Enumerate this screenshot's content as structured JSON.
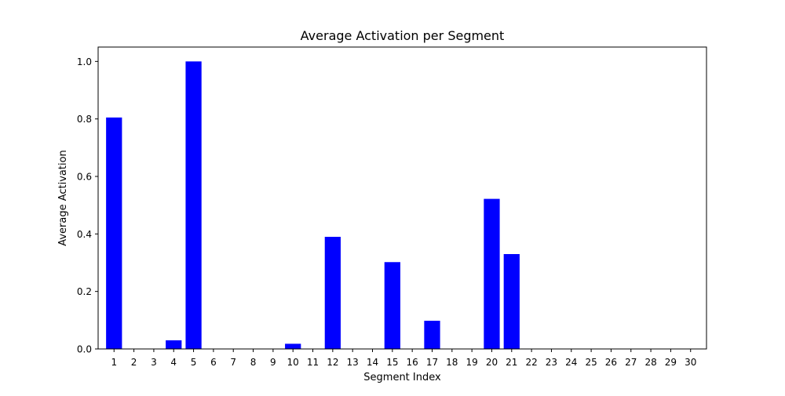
{
  "chart_data": {
    "type": "bar",
    "title": "Average Activation per Segment",
    "xlabel": "Segment Index",
    "ylabel": "Average Activation",
    "categories": [
      "1",
      "2",
      "3",
      "4",
      "5",
      "6",
      "7",
      "8",
      "9",
      "10",
      "11",
      "12",
      "13",
      "14",
      "15",
      "16",
      "17",
      "18",
      "19",
      "20",
      "21",
      "22",
      "23",
      "24",
      "25",
      "26",
      "27",
      "28",
      "29",
      "30"
    ],
    "values": [
      0.805,
      0,
      0,
      0.03,
      1.0,
      0,
      0,
      0,
      0,
      0.018,
      0,
      0.39,
      0,
      0,
      0.302,
      0,
      0.098,
      0,
      0,
      0.522,
      0.33,
      0,
      0,
      0,
      0,
      0,
      0,
      0,
      0,
      0
    ],
    "yticks": [
      "0.0",
      "0.2",
      "0.4",
      "0.6",
      "0.8",
      "1.0"
    ],
    "ytick_values": [
      0,
      0.2,
      0.4,
      0.6,
      0.8,
      1.0
    ],
    "ylim": [
      0,
      1.05
    ],
    "bar_color": "#0000ff",
    "grid": false,
    "legend": "none"
  }
}
